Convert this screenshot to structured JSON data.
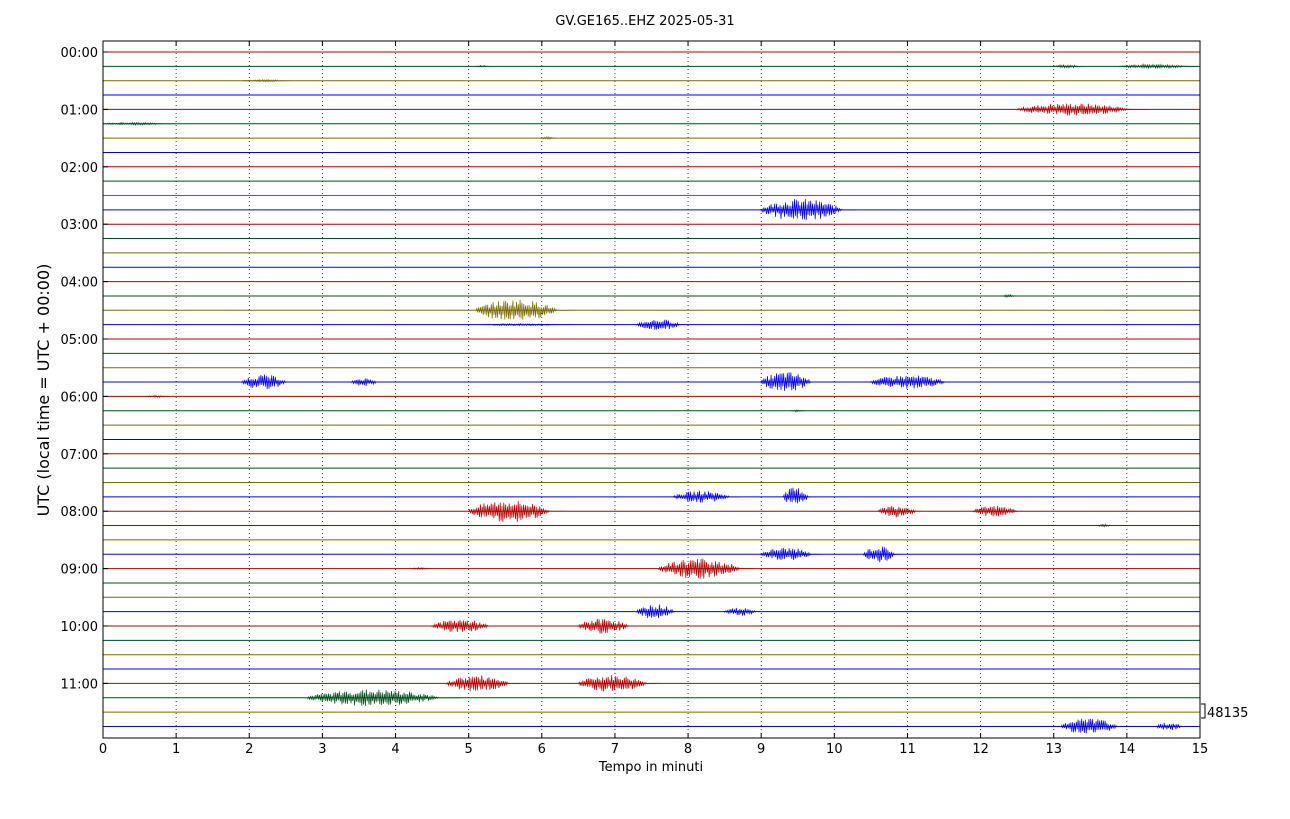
{
  "chart_data": {
    "type": "line",
    "title": "GV.GE165..EHZ 2025-05-31",
    "xlabel": "Tempo in minuti",
    "ylabel": "UTC (local time = UTC + 00:00)",
    "xlim": [
      0,
      15
    ],
    "x_ticks": [
      "0",
      "1",
      "2",
      "3",
      "4",
      "5",
      "6",
      "7",
      "8",
      "9",
      "10",
      "11",
      "12",
      "13",
      "14",
      "15"
    ],
    "y_ticks": [
      "00:00",
      "01:00",
      "02:00",
      "03:00",
      "04:00",
      "05:00",
      "06:00",
      "07:00",
      "08:00",
      "09:00",
      "10:00",
      "11:00"
    ],
    "grid": "vertical dotted at each minute",
    "traces_per_hour": 4,
    "minutes_per_trace": 15,
    "trace_colors": [
      "#b30000",
      "#004d1a",
      "#7a6a00",
      "#0000ee"
    ],
    "scale_annotation": "48135",
    "events": [
      {
        "trace": 1,
        "start": 13.0,
        "end": 13.4,
        "amp": 0.25
      },
      {
        "trace": 1,
        "start": 13.9,
        "end": 15.0,
        "amp": 0.3
      },
      {
        "trace": 1,
        "start": 5.1,
        "end": 5.3,
        "amp": 0.15
      },
      {
        "trace": 2,
        "start": 1.9,
        "end": 2.6,
        "amp": 0.15
      },
      {
        "trace": 4,
        "start": 12.5,
        "end": 14.3,
        "amp": 0.9
      },
      {
        "trace": 5,
        "start": 0.0,
        "end": 1.0,
        "amp": 0.2
      },
      {
        "trace": 6,
        "start": 6.0,
        "end": 6.2,
        "amp": 0.2
      },
      {
        "trace": 11,
        "start": 9.0,
        "end": 10.3,
        "amp": 1.6
      },
      {
        "trace": 17,
        "start": 12.3,
        "end": 12.5,
        "amp": 0.2
      },
      {
        "trace": 18,
        "start": 5.1,
        "end": 6.4,
        "amp": 1.6
      },
      {
        "trace": 19,
        "start": 7.3,
        "end": 8.0,
        "amp": 0.8
      },
      {
        "trace": 19,
        "start": 5.2,
        "end": 6.4,
        "amp": 0.15
      },
      {
        "trace": 23,
        "start": 1.9,
        "end": 2.6,
        "amp": 1.1
      },
      {
        "trace": 23,
        "start": 3.4,
        "end": 3.8,
        "amp": 0.6
      },
      {
        "trace": 23,
        "start": 9.0,
        "end": 9.8,
        "amp": 1.5
      },
      {
        "trace": 23,
        "start": 10.5,
        "end": 11.7,
        "amp": 1.0
      },
      {
        "trace": 24,
        "start": 0.6,
        "end": 0.9,
        "amp": 0.15
      },
      {
        "trace": 25,
        "start": 9.4,
        "end": 9.6,
        "amp": 0.15
      },
      {
        "trace": 31,
        "start": 7.8,
        "end": 8.7,
        "amp": 0.9
      },
      {
        "trace": 31,
        "start": 9.3,
        "end": 9.7,
        "amp": 1.4
      },
      {
        "trace": 32,
        "start": 5.0,
        "end": 6.3,
        "amp": 1.6
      },
      {
        "trace": 32,
        "start": 10.6,
        "end": 11.2,
        "amp": 0.9
      },
      {
        "trace": 32,
        "start": 11.9,
        "end": 12.6,
        "amp": 0.8
      },
      {
        "trace": 33,
        "start": 13.6,
        "end": 13.8,
        "amp": 0.2
      },
      {
        "trace": 35,
        "start": 9.0,
        "end": 9.8,
        "amp": 1.0
      },
      {
        "trace": 35,
        "start": 10.4,
        "end": 10.9,
        "amp": 1.2
      },
      {
        "trace": 36,
        "start": 7.6,
        "end": 8.9,
        "amp": 1.5
      },
      {
        "trace": 36,
        "start": 4.2,
        "end": 4.5,
        "amp": 0.15
      },
      {
        "trace": 39,
        "start": 7.3,
        "end": 7.9,
        "amp": 1.1
      },
      {
        "trace": 39,
        "start": 8.5,
        "end": 9.0,
        "amp": 0.6
      },
      {
        "trace": 40,
        "start": 4.5,
        "end": 5.4,
        "amp": 1.0
      },
      {
        "trace": 40,
        "start": 6.5,
        "end": 7.3,
        "amp": 1.1
      },
      {
        "trace": 44,
        "start": 4.7,
        "end": 5.7,
        "amp": 1.2
      },
      {
        "trace": 44,
        "start": 6.5,
        "end": 7.6,
        "amp": 1.2
      },
      {
        "trace": 45,
        "start": 2.8,
        "end": 4.9,
        "amp": 1.2
      },
      {
        "trace": 47,
        "start": 13.1,
        "end": 14.0,
        "amp": 1.2
      },
      {
        "trace": 47,
        "start": 14.4,
        "end": 14.8,
        "amp": 0.6
      }
    ]
  }
}
